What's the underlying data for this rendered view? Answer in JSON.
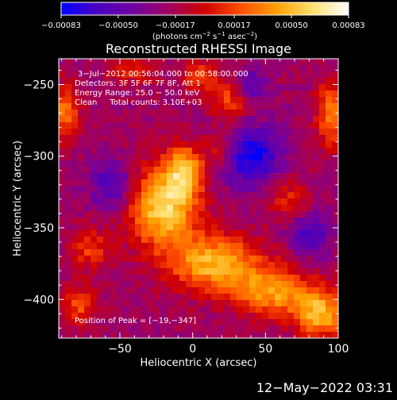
{
  "chart_data": {
    "type": "heatmap",
    "title": "Reconstructed RHESSI Image",
    "xlabel": "Heliocentric X (arcsec)",
    "ylabel": "Heliocentric Y (arcsec)",
    "xlim": [
      -92,
      100
    ],
    "ylim": [
      -427,
      -232
    ],
    "x_ticks": [
      -50,
      0,
      50,
      100
    ],
    "x_tick_labels": [
      "−50",
      "0",
      "50",
      "100"
    ],
    "y_ticks": [
      -250,
      -300,
      -350,
      -400
    ],
    "y_tick_labels": [
      "−250",
      "−300",
      "−350",
      "−400"
    ],
    "colorbar": {
      "range": [
        -0.00083,
        0.00083
      ],
      "ticks": [
        -0.00083,
        -0.0005,
        -0.00017,
        0.00017,
        0.0005,
        0.00083
      ],
      "tick_labels": [
        "−0.00083",
        "−0.00050",
        "−0.00017",
        "0.00017",
        "0.00050",
        "0.00083"
      ],
      "label_parts": [
        "(photons cm",
        "−2",
        " s",
        "−1",
        " asec",
        "−2",
        ")"
      ],
      "colors": [
        "#0000ff",
        "#4a00c0",
        "#7000a0",
        "#a00060",
        "#d00000",
        "#ff5000",
        "#ffa000",
        "#ffe070",
        "#ffffff"
      ]
    },
    "annotations": [
      "3−Jul−2012 00:56:04.000 to 00:58:00.000",
      "Detectors: 3F 5F 6F 7F 8F, Att 1",
      "Energy Range: 25.0 − 50.0 keV",
      "Clean     Total counts: 3.10E+03"
    ],
    "peak_label": "Position of Peak = [−19,−347]",
    "peak": [
      -19,
      -347
    ],
    "sources": [
      {
        "x": -20,
        "y": -335,
        "amp": 0.00083,
        "sx": 16,
        "sy": 20
      },
      {
        "x": -5,
        "y": -310,
        "amp": 0.00062,
        "sx": 9,
        "sy": 12
      },
      {
        "x": 15,
        "y": -375,
        "amp": 0.0007,
        "sx": 22,
        "sy": 14
      },
      {
        "x": 55,
        "y": -395,
        "amp": 0.0006,
        "sx": 18,
        "sy": 12
      },
      {
        "x": 88,
        "y": -410,
        "amp": 0.0007,
        "sx": 12,
        "sy": 12
      },
      {
        "x": -88,
        "y": -270,
        "amp": 0.0005,
        "sx": 7,
        "sy": 14
      },
      {
        "x": 95,
        "y": -270,
        "amp": 0.00055,
        "sx": 7,
        "sy": 16
      },
      {
        "x": -70,
        "y": -365,
        "amp": 0.00035,
        "sx": 10,
        "sy": 10
      },
      {
        "x": -78,
        "y": -405,
        "amp": 0.0004,
        "sx": 8,
        "sy": 10
      },
      {
        "x": -40,
        "y": -240,
        "amp": 0.0003,
        "sx": 12,
        "sy": 6
      },
      {
        "x": 25,
        "y": -262,
        "amp": 0.0004,
        "sx": 8,
        "sy": 10
      },
      {
        "x": 20,
        "y": -295,
        "amp": 0.0003,
        "sx": 8,
        "sy": 8
      },
      {
        "x": 65,
        "y": -330,
        "amp": 0.0003,
        "sx": 10,
        "sy": 10
      },
      {
        "x": 5,
        "y": -245,
        "amp": 0.0004,
        "sx": 8,
        "sy": 8
      },
      {
        "x": 40,
        "y": -300,
        "amp": -0.0006,
        "sx": 14,
        "sy": 14
      },
      {
        "x": 80,
        "y": -355,
        "amp": -0.0004,
        "sx": 10,
        "sy": 10
      },
      {
        "x": -55,
        "y": -320,
        "amp": -0.0004,
        "sx": 10,
        "sy": 12
      },
      {
        "x": 40,
        "y": -250,
        "amp": -0.0003,
        "sx": 8,
        "sy": 8
      }
    ],
    "grid": false
  },
  "footer": {
    "timestamp": "12−May−2022 03:31"
  }
}
